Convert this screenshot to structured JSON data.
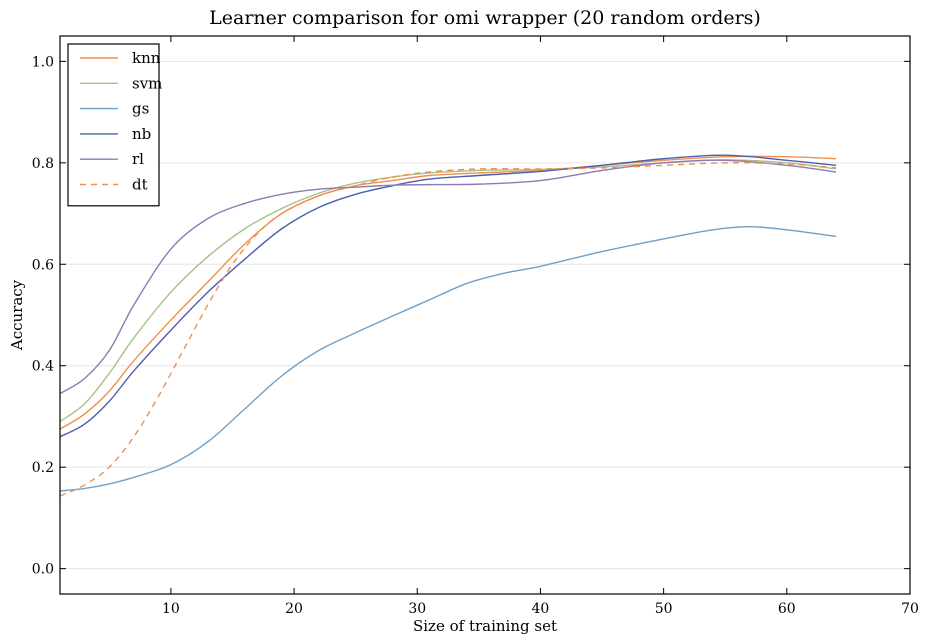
{
  "chart_data": {
    "type": "line",
    "title": "Learner comparison for omi wrapper (20 random orders)",
    "xlabel": "Size of training set",
    "ylabel": "Accuracy",
    "xlim": [
      1,
      70
    ],
    "ylim": [
      -0.05,
      1.05
    ],
    "xticks": [
      10,
      20,
      30,
      40,
      50,
      60,
      70
    ],
    "yticks": [
      0.0,
      0.2,
      0.4,
      0.6,
      0.8,
      1.0
    ],
    "ytick_labels": [
      "0.0",
      "0.2",
      "0.4",
      "0.6",
      "0.8",
      "1.0"
    ],
    "grid": "horizontal",
    "legend_position": "top-left",
    "series": [
      {
        "name": "knn",
        "color": "#f28e4c",
        "style": "solid",
        "x": [
          1,
          3,
          5,
          7,
          10,
          13,
          16,
          19,
          22,
          25,
          28,
          31,
          35,
          40,
          45,
          50,
          55,
          60,
          64
        ],
        "y": [
          0.275,
          0.305,
          0.35,
          0.41,
          0.49,
          0.565,
          0.64,
          0.7,
          0.735,
          0.755,
          0.765,
          0.775,
          0.78,
          0.785,
          0.795,
          0.805,
          0.812,
          0.812,
          0.808
        ]
      },
      {
        "name": "svm",
        "color": "#a9c08a",
        "style": "solid",
        "x": [
          1,
          3,
          5,
          7,
          10,
          13,
          16,
          19,
          22,
          25,
          28,
          31,
          35,
          40,
          45,
          50,
          55,
          60,
          64
        ],
        "y": [
          0.29,
          0.325,
          0.385,
          0.455,
          0.545,
          0.615,
          0.67,
          0.71,
          0.74,
          0.76,
          0.772,
          0.78,
          0.785,
          0.787,
          0.792,
          0.8,
          0.806,
          0.8,
          0.788
        ]
      },
      {
        "name": "gs",
        "color": "#6fa0c8",
        "style": "solid",
        "x": [
          1,
          3,
          5,
          7,
          10,
          13,
          16,
          19,
          22,
          25,
          28,
          31,
          34,
          37,
          40,
          45,
          50,
          54,
          57,
          60,
          64
        ],
        "y": [
          0.153,
          0.158,
          0.167,
          0.18,
          0.205,
          0.25,
          0.315,
          0.38,
          0.43,
          0.465,
          0.498,
          0.53,
          0.562,
          0.582,
          0.596,
          0.625,
          0.65,
          0.668,
          0.674,
          0.668,
          0.655
        ]
      },
      {
        "name": "nb",
        "color": "#4a5fb0",
        "style": "solid",
        "x": [
          1,
          3,
          5,
          7,
          10,
          13,
          16,
          19,
          22,
          25,
          28,
          31,
          35,
          40,
          45,
          50,
          55,
          60,
          64
        ],
        "y": [
          0.26,
          0.285,
          0.33,
          0.39,
          0.47,
          0.545,
          0.61,
          0.67,
          0.712,
          0.738,
          0.755,
          0.768,
          0.775,
          0.783,
          0.795,
          0.808,
          0.815,
          0.805,
          0.795
        ]
      },
      {
        "name": "rl",
        "color": "#8b7bb5",
        "style": "solid",
        "x": [
          1,
          3,
          5,
          7,
          10,
          13,
          16,
          19,
          22,
          25,
          28,
          31,
          35,
          40,
          45,
          50,
          55,
          60,
          64
        ],
        "y": [
          0.345,
          0.375,
          0.43,
          0.52,
          0.63,
          0.69,
          0.72,
          0.738,
          0.748,
          0.752,
          0.756,
          0.757,
          0.758,
          0.765,
          0.785,
          0.8,
          0.805,
          0.795,
          0.782
        ]
      },
      {
        "name": "dt",
        "color": "#f28e4c",
        "style": "dashed",
        "x": [
          1,
          3,
          5,
          7,
          9,
          11,
          13,
          15,
          17,
          19,
          22,
          25,
          28,
          31,
          35,
          40,
          45,
          50,
          55,
          60,
          64
        ],
        "y": [
          0.143,
          0.165,
          0.2,
          0.26,
          0.34,
          0.43,
          0.52,
          0.6,
          0.66,
          0.7,
          0.735,
          0.755,
          0.772,
          0.782,
          0.788,
          0.788,
          0.79,
          0.795,
          0.8,
          0.798,
          0.79
        ]
      }
    ]
  }
}
